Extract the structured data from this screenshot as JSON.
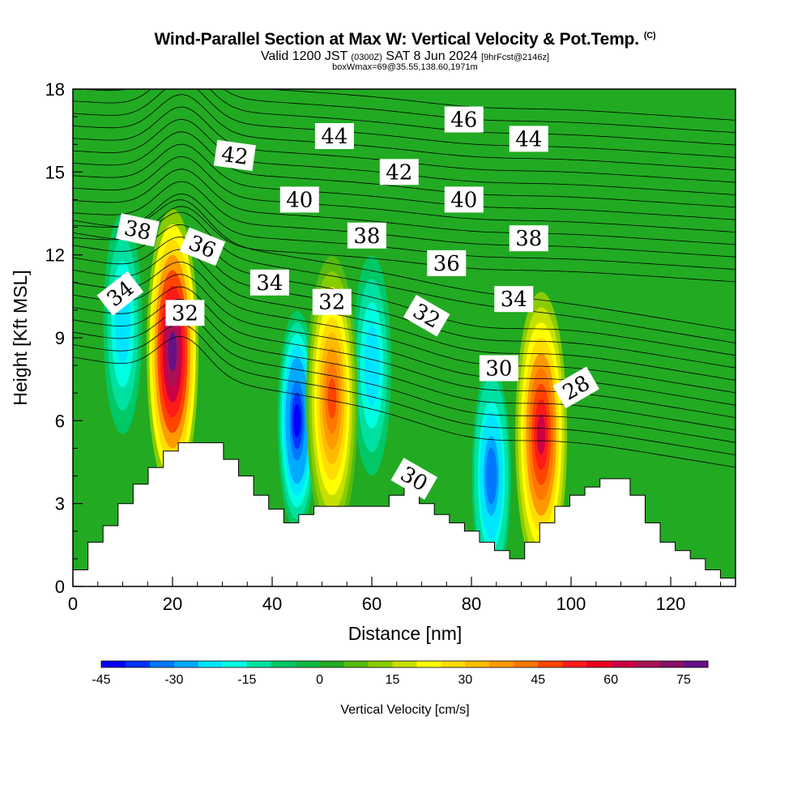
{
  "header": {
    "title": "Wind-Parallel Section at Max W: Vertical Velocity & Pot.Temp.",
    "copyright": "(C)",
    "valid_prefix": "Valid 1200 JST",
    "valid_utc": "(0300Z)",
    "valid_date": "SAT 8 Jun 2024",
    "forecast": "[9hrFcst@2146z]",
    "box_info": "boxWmax=69@35.55,138.60,1971m"
  },
  "colors": {
    "background_field": "#22aa22",
    "terrain": "#ffffff",
    "contour": "#000000"
  },
  "chart_data": {
    "type": "heatmap",
    "xlabel": "Distance [nm]",
    "ylabel": "Height [Kft MSL]",
    "xlim": [
      0,
      133
    ],
    "ylim": [
      0,
      18
    ],
    "x_ticks": [
      0,
      20,
      40,
      60,
      80,
      100,
      120
    ],
    "y_ticks": [
      0,
      3,
      6,
      9,
      12,
      15,
      18
    ],
    "colorbar": {
      "label": "Vertical Velocity [cm/s]",
      "ticks": [
        -45,
        -30,
        -15,
        0,
        15,
        30,
        45,
        60,
        75
      ],
      "range": [
        -45,
        80
      ],
      "colors": [
        "#0000ff",
        "#0033ff",
        "#0077ff",
        "#00aaff",
        "#00e5ff",
        "#00ffe0",
        "#00e0a0",
        "#00c866",
        "#10b840",
        "#22aa22",
        "#55bb11",
        "#88cc00",
        "#c8e000",
        "#ffff00",
        "#ffdd00",
        "#ffbb00",
        "#ff9900",
        "#ff7700",
        "#ff4400",
        "#ff1a1a",
        "#ee0022",
        "#cc0044",
        "#aa1155",
        "#881166",
        "#661188"
      ]
    },
    "terrain_profile": [
      [
        0,
        0.6
      ],
      [
        1,
        0.6
      ],
      [
        1,
        0.6
      ],
      [
        1,
        1.6
      ],
      [
        1,
        1.6
      ],
      [
        2,
        1.6
      ],
      [
        2,
        2.2
      ],
      [
        3,
        2.2
      ],
      [
        3,
        3.0
      ],
      [
        4,
        3.0
      ],
      [
        4,
        3.7
      ],
      [
        5,
        3.7
      ],
      [
        5,
        4.3
      ],
      [
        6,
        4.3
      ],
      [
        6,
        4.9
      ],
      [
        7,
        4.9
      ],
      [
        7,
        5.2
      ],
      [
        9,
        5.2
      ],
      [
        9,
        5.2
      ],
      [
        10,
        5.2
      ],
      [
        10,
        4.6
      ],
      [
        11,
        4.6
      ],
      [
        11,
        4.0
      ],
      [
        12,
        4.0
      ],
      [
        12,
        3.3
      ],
      [
        13,
        3.3
      ],
      [
        13,
        2.8
      ],
      [
        14,
        2.8
      ],
      [
        14,
        2.3
      ],
      [
        15,
        2.3
      ],
      [
        15,
        2.6
      ],
      [
        16,
        2.6
      ],
      [
        16,
        2.9
      ],
      [
        20,
        2.9
      ],
      [
        20,
        2.9
      ],
      [
        21,
        2.9
      ],
      [
        21,
        3.3
      ],
      [
        22,
        3.3
      ],
      [
        22,
        3.6
      ],
      [
        23,
        3.6
      ],
      [
        23,
        3.0
      ],
      [
        24,
        3.0
      ],
      [
        24,
        2.6
      ],
      [
        25,
        2.6
      ],
      [
        25,
        2.3
      ],
      [
        26,
        2.3
      ],
      [
        26,
        2.0
      ],
      [
        27,
        2.0
      ],
      [
        27,
        1.6
      ],
      [
        28,
        1.6
      ],
      [
        28,
        1.3
      ],
      [
        29,
        1.3
      ],
      [
        29,
        1.0
      ],
      [
        30,
        1.0
      ],
      [
        30,
        1.6
      ],
      [
        31,
        1.6
      ],
      [
        31,
        2.3
      ],
      [
        32,
        2.3
      ],
      [
        32,
        2.9
      ],
      [
        33,
        2.9
      ],
      [
        33,
        3.3
      ],
      [
        34,
        3.3
      ],
      [
        34,
        3.6
      ],
      [
        35,
        3.6
      ],
      [
        35,
        3.9
      ],
      [
        37,
        3.9
      ],
      [
        37,
        3.3
      ],
      [
        38,
        3.3
      ],
      [
        38,
        2.3
      ],
      [
        39,
        2.3
      ],
      [
        39,
        1.6
      ],
      [
        40,
        1.6
      ],
      [
        40,
        1.3
      ],
      [
        41,
        1.3
      ],
      [
        41,
        1.0
      ],
      [
        42,
        1.0
      ],
      [
        42,
        0.6
      ],
      [
        43,
        0.6
      ],
      [
        43,
        0.3
      ],
      [
        44,
        0.3
      ]
    ],
    "updrafts": [
      {
        "x": 20,
        "height": 8.5,
        "max": 78
      },
      {
        "x": 52,
        "height": 6.8,
        "max": 45
      },
      {
        "x": 94,
        "height": 5.5,
        "max": 60
      }
    ],
    "downdrafts": [
      {
        "x": 45,
        "height": 6.0,
        "min": -42
      },
      {
        "x": 60,
        "height": 8.0,
        "min": -25
      },
      {
        "x": 84,
        "height": 4.0,
        "min": -35
      },
      {
        "x": 10,
        "height": 9.5,
        "min": -25
      }
    ],
    "contour_labels": [
      {
        "text": "46",
        "x": 78.5,
        "y": 16.9,
        "angle": 0
      },
      {
        "text": "44",
        "x": 52.5,
        "y": 16.3,
        "angle": 0
      },
      {
        "text": "44",
        "x": 91.5,
        "y": 16.2,
        "angle": 0
      },
      {
        "text": "42",
        "x": 32.5,
        "y": 15.6,
        "angle": 8
      },
      {
        "text": "42",
        "x": 65.5,
        "y": 15.0,
        "angle": 0
      },
      {
        "text": "40",
        "x": 45.5,
        "y": 14.0,
        "angle": 0
      },
      {
        "text": "40",
        "x": 78.5,
        "y": 14.0,
        "angle": 0
      },
      {
        "text": "38",
        "x": 13,
        "y": 12.9,
        "angle": 12
      },
      {
        "text": "38",
        "x": 59,
        "y": 12.7,
        "angle": 0
      },
      {
        "text": "38",
        "x": 91.5,
        "y": 12.6,
        "angle": 0
      },
      {
        "text": "36",
        "x": 26,
        "y": 12.3,
        "angle": 22
      },
      {
        "text": "36",
        "x": 75,
        "y": 11.7,
        "angle": 0
      },
      {
        "text": "34",
        "x": 9.5,
        "y": 10.6,
        "angle": -38
      },
      {
        "text": "34",
        "x": 39.5,
        "y": 11.0,
        "angle": 0
      },
      {
        "text": "34",
        "x": 88.5,
        "y": 10.4,
        "angle": 0
      },
      {
        "text": "32",
        "x": 22.5,
        "y": 9.9,
        "angle": 0
      },
      {
        "text": "32",
        "x": 52,
        "y": 10.3,
        "angle": 0
      },
      {
        "text": "32",
        "x": 71,
        "y": 9.8,
        "angle": 30
      },
      {
        "text": "30",
        "x": 85.5,
        "y": 7.9,
        "angle": 0
      },
      {
        "text": "30",
        "x": 68.5,
        "y": 3.9,
        "angle": 30
      },
      {
        "text": "28",
        "x": 101,
        "y": 7.2,
        "angle": -30
      }
    ]
  }
}
